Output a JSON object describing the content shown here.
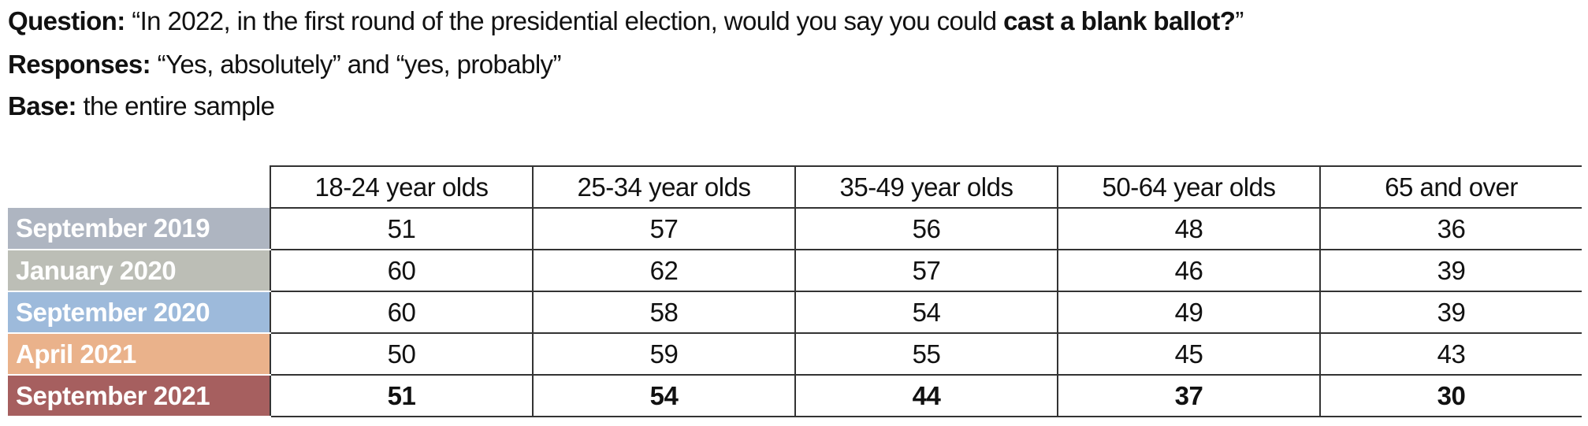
{
  "header": {
    "question_label": "Question:",
    "question_text": "“In 2022, in the first round of the presidential election, would you say you could",
    "question_bold": "cast a blank ballot?",
    "question_end": "”",
    "responses_label": "Responses:",
    "responses_text": "“Yes, absolutely” and “yes, probably”",
    "base_label": "Base:",
    "base_text": "the entire sample"
  },
  "table": {
    "columns": [
      "18-24 year olds",
      "25-34 year olds",
      "35-49 year olds",
      "50-64 year olds",
      "65 and over"
    ],
    "rows": [
      {
        "label": "September 2019",
        "color": "#aeb5c1",
        "values": [
          51,
          57,
          56,
          48,
          36
        ]
      },
      {
        "label": "January 2020",
        "color": "#bcbeb6",
        "values": [
          60,
          62,
          57,
          46,
          39
        ]
      },
      {
        "label": "September 2020",
        "color": "#9dbadb",
        "values": [
          60,
          58,
          54,
          49,
          39
        ]
      },
      {
        "label": "April 2021",
        "color": "#eab28b",
        "values": [
          50,
          59,
          55,
          45,
          43
        ]
      },
      {
        "label": "September 2021",
        "color": "#a65f5f",
        "values": [
          51,
          54,
          44,
          37,
          30
        ]
      }
    ]
  }
}
